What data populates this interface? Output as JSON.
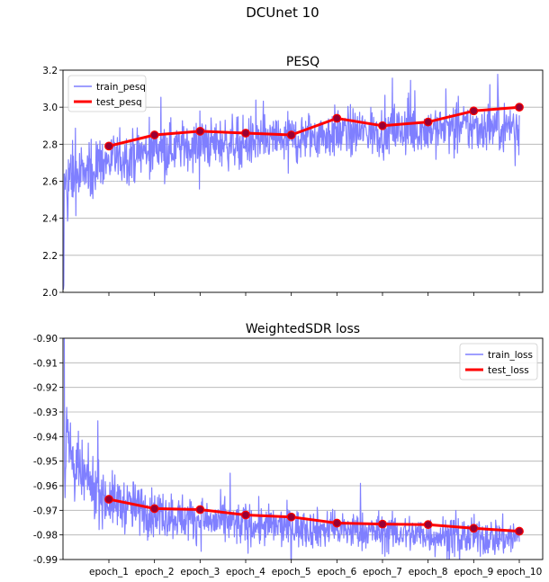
{
  "figure": {
    "title": "DCUnet 10"
  },
  "chart_data": [
    {
      "type": "line",
      "title": "PESQ",
      "xlabel": "",
      "ylabel": "",
      "categories": [
        "epoch_1",
        "epoch_2",
        "epoch_3",
        "epoch_4",
        "epoch_5",
        "epoch_6",
        "epoch_7",
        "epoch_8",
        "epoch_9",
        "epoch_10"
      ],
      "ylim": [
        2.0,
        3.2
      ],
      "yticks": [
        "2.0",
        "2.2",
        "2.4",
        "2.6",
        "2.8",
        "3.0",
        "3.2"
      ],
      "grid": "y",
      "legend": "top-left",
      "series": [
        {
          "name": "train_pesq",
          "color": "#7f7fff",
          "style": "noisy-band",
          "trend": [
            {
              "epoch": 0.0,
              "center": 2.58,
              "spread": 0.2,
              "low": 2.0
            },
            {
              "epoch": 0.5,
              "center": 2.65,
              "spread": 0.15
            },
            {
              "epoch": 1.0,
              "center": 2.71,
              "spread": 0.13
            },
            {
              "epoch": 2.0,
              "center": 2.77,
              "spread": 0.12
            },
            {
              "epoch": 3.0,
              "center": 2.8,
              "spread": 0.12
            },
            {
              "epoch": 4.0,
              "center": 2.81,
              "spread": 0.12
            },
            {
              "epoch": 5.0,
              "center": 2.83,
              "spread": 0.12
            },
            {
              "epoch": 6.0,
              "center": 2.86,
              "spread": 0.12
            },
            {
              "epoch": 7.0,
              "center": 2.87,
              "spread": 0.12
            },
            {
              "epoch": 8.0,
              "center": 2.88,
              "spread": 0.12
            },
            {
              "epoch": 9.0,
              "center": 2.89,
              "spread": 0.12
            },
            {
              "epoch": 10.0,
              "center": 2.9,
              "spread": 0.12
            }
          ]
        },
        {
          "name": "test_pesq",
          "color": "#ff0000",
          "marker_color": "#990033",
          "values": [
            2.79,
            2.85,
            2.87,
            2.86,
            2.85,
            2.94,
            2.9,
            2.92,
            2.98,
            3.0
          ]
        }
      ]
    },
    {
      "type": "line",
      "title": "WeightedSDR loss",
      "xlabel": "",
      "ylabel": "",
      "categories": [
        "epoch_1",
        "epoch_2",
        "epoch_3",
        "epoch_4",
        "epoch_5",
        "epoch_6",
        "epoch_7",
        "epoch_8",
        "epoch_9",
        "epoch_10"
      ],
      "ylim": [
        -0.99,
        -0.9
      ],
      "yticks": [
        "-0.99",
        "-0.98",
        "-0.97",
        "-0.96",
        "-0.95",
        "-0.94",
        "-0.93",
        "-0.92",
        "-0.91",
        "-0.90"
      ],
      "grid": "y",
      "legend": "top-right",
      "series": [
        {
          "name": "train_loss",
          "color": "#7f7fff",
          "style": "noisy-band",
          "trend": [
            {
              "epoch": 0.0,
              "center": -0.935,
              "spread": 0.03,
              "high": -0.9
            },
            {
              "epoch": 0.3,
              "center": -0.955,
              "spread": 0.012
            },
            {
              "epoch": 1.0,
              "center": -0.966,
              "spread": 0.01
            },
            {
              "epoch": 2.0,
              "center": -0.971,
              "spread": 0.009
            },
            {
              "epoch": 3.0,
              "center": -0.974,
              "spread": 0.008
            },
            {
              "epoch": 4.0,
              "center": -0.976,
              "spread": 0.008
            },
            {
              "epoch": 5.0,
              "center": -0.977,
              "spread": 0.007
            },
            {
              "epoch": 6.0,
              "center": -0.978,
              "spread": 0.007
            },
            {
              "epoch": 7.0,
              "center": -0.979,
              "spread": 0.007
            },
            {
              "epoch": 8.0,
              "center": -0.98,
              "spread": 0.007
            },
            {
              "epoch": 9.0,
              "center": -0.981,
              "spread": 0.007
            },
            {
              "epoch": 10.0,
              "center": -0.981,
              "spread": 0.007
            }
          ]
        },
        {
          "name": "test_loss",
          "color": "#ff0000",
          "marker_color": "#990033",
          "values": [
            -0.9655,
            -0.9693,
            -0.9697,
            -0.9719,
            -0.9727,
            -0.9752,
            -0.9756,
            -0.9758,
            -0.9773,
            -0.9785
          ]
        }
      ]
    }
  ]
}
